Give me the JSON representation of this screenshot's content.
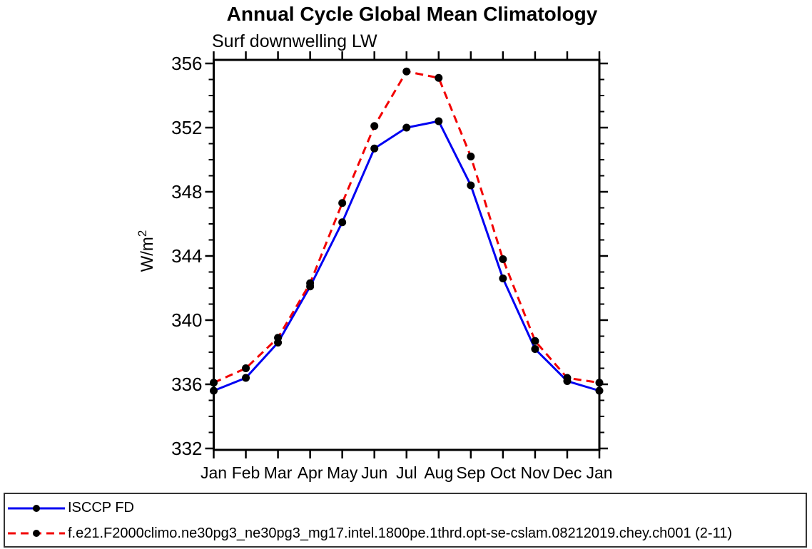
{
  "chart_data": {
    "type": "line",
    "title": "Annual Cycle Global Mean Climatology",
    "subtitle": "Surf downwelling LW",
    "ylabel_base": "W/m",
    "ylabel_sup": "2",
    "categories": [
      "Jan",
      "Feb",
      "Mar",
      "Apr",
      "May",
      "Jun",
      "Jul",
      "Aug",
      "Sep",
      "Oct",
      "Nov",
      "Dec",
      "Jan"
    ],
    "ylim": [
      332,
      356
    ],
    "ytick_major_step": 4,
    "ytick_minor_step": 1,
    "ytick_labels": [
      "332",
      "336",
      "340",
      "344",
      "348",
      "352",
      "356"
    ],
    "grid": "off",
    "legend_position": "bottom-box",
    "marker_color": "#000000",
    "series": [
      {
        "name": "ISCCP FD",
        "color": "#0000f2",
        "style": "solid",
        "marker": "filled-circle",
        "values": [
          335.6,
          336.4,
          338.6,
          342.1,
          346.1,
          350.7,
          352.0,
          352.4,
          348.4,
          342.6,
          338.2,
          336.2,
          335.6
        ]
      },
      {
        "name": "f.e21.F2000climo.ne30pg3_ne30pg3_mg17.intel.1800pe.1thrd.opt-se-cslam.08212019.chey.ch001 (2-11)",
        "color": "#f20000",
        "style": "dashed",
        "marker": "filled-circle",
        "values": [
          336.1,
          337.0,
          338.9,
          342.3,
          347.3,
          352.1,
          355.5,
          355.1,
          350.2,
          343.8,
          338.7,
          336.4,
          336.1
        ]
      }
    ]
  }
}
